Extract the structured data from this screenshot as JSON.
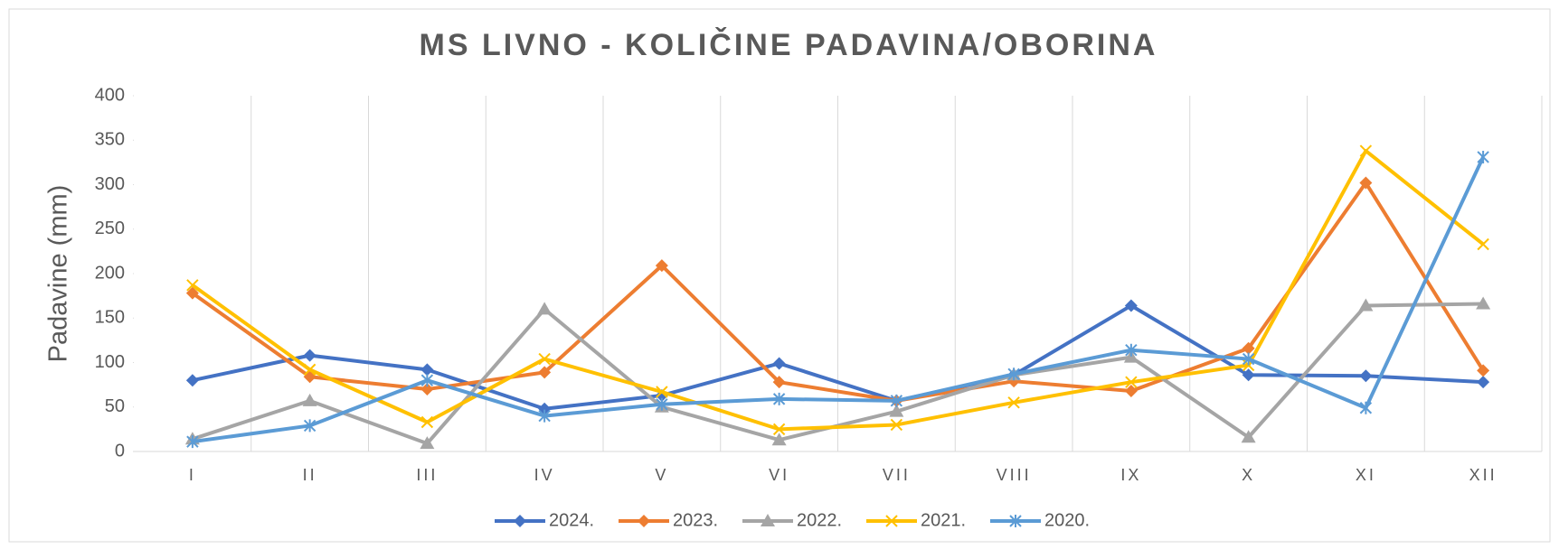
{
  "chart_data": {
    "type": "line",
    "title": "MS LIVNO - KOLIČINE PADAVINA/OBORINA",
    "y_label": "Padavine (mm)",
    "categories": [
      "I",
      "II",
      "III",
      "IV",
      "V",
      "VI",
      "VII",
      "VIII",
      "IX",
      "X",
      "XI",
      "XII"
    ],
    "series": [
      {
        "name": "2024.",
        "color": "#4472c4",
        "marker": "diamond",
        "values": [
          80,
          108,
          92,
          48,
          63,
          99,
          57,
          86,
          164,
          86,
          85,
          78
        ]
      },
      {
        "name": "2023.",
        "color": "#ed7d31",
        "marker": "diamond",
        "values": [
          178,
          84,
          70,
          89,
          209,
          78,
          57,
          79,
          68,
          116,
          302,
          91
        ]
      },
      {
        "name": "2022.",
        "color": "#a5a5a5",
        "marker": "triangle",
        "values": [
          14,
          57,
          9,
          160,
          50,
          13,
          45,
          86,
          106,
          16,
          164,
          166
        ]
      },
      {
        "name": "2021.",
        "color": "#ffc000",
        "marker": "x",
        "values": [
          187,
          92,
          33,
          104,
          67,
          25,
          30,
          55,
          78,
          97,
          338,
          233
        ]
      },
      {
        "name": "2020.",
        "color": "#5b9bd5",
        "marker": "star",
        "values": [
          11,
          29,
          80,
          40,
          53,
          59,
          57,
          87,
          114,
          104,
          49,
          331
        ]
      }
    ],
    "ylim": [
      0,
      400
    ],
    "yticks": [
      0,
      50,
      100,
      150,
      200,
      250,
      300,
      350,
      400
    ],
    "grid": "vertical",
    "legend": "bottom"
  }
}
